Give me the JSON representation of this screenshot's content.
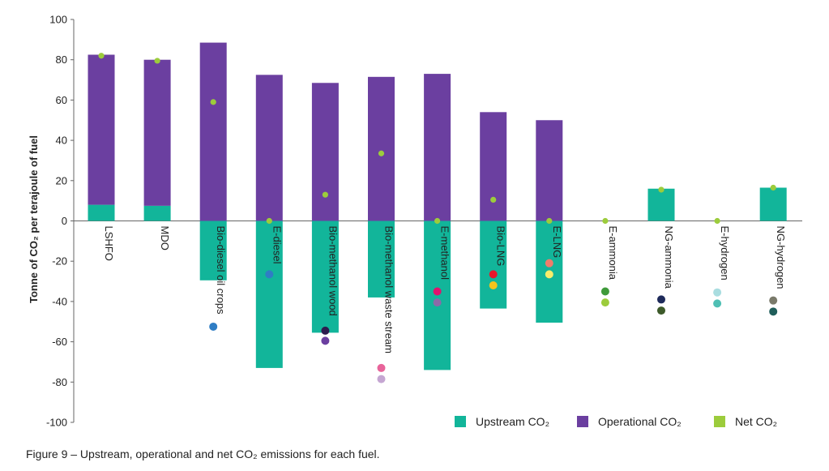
{
  "caption": "Figure 9 – Upstream, operational and net CO₂ emissions for each fuel.",
  "chart_data": {
    "type": "bar",
    "stacked": true,
    "ylabel": "Tonne of CO₂ per terajoule of fuel",
    "ylim": [
      -100,
      100
    ],
    "yticks": [
      100,
      80,
      60,
      40,
      20,
      0,
      -20,
      -40,
      -60,
      -80,
      -100
    ],
    "grid": false,
    "legend_position": "bottom-right",
    "categories": [
      "LSHFO",
      "MDO",
      "Bio-diesel oil crops",
      "E-diesel",
      "Bio-methanol wood",
      "Bio-methanol waste stream",
      "E-methanol",
      "Bio-LNG",
      "E-LNG",
      "E-ammonia",
      "NG-ammonia",
      "E-hydrogen",
      "NG-hydrogen"
    ],
    "category_labels": [
      "LSHFO",
      "MDO",
      "Bio-diesel oil crops",
      "E-diesel",
      "Bio-methanol wood",
      "Bio-methanol waste stream",
      "E-methanol",
      "Bio-LNG",
      "E-LNG",
      "E-ammonia",
      "NG-ammonia",
      "E-hydrogen",
      "NG-hydrogen"
    ],
    "series": [
      {
        "name": "Upstream CO₂",
        "color": "#12b59a",
        "values": [
          8,
          7.5,
          -29.5,
          -73,
          -55.5,
          -38,
          -74,
          -43.5,
          -50.5,
          0,
          16,
          0,
          16.5
        ]
      },
      {
        "name": "Operational CO₂",
        "color": "#6b3fa0",
        "values": [
          74.5,
          72.5,
          88.5,
          72.5,
          68.5,
          71.5,
          73,
          54,
          50,
          0,
          0,
          0,
          0
        ]
      },
      {
        "name": "Net CO₂",
        "type": "scatter",
        "color": "#9ccc3c",
        "values": [
          82,
          79.5,
          59,
          0,
          13,
          33.5,
          0,
          10.5,
          0,
          0,
          15.5,
          0,
          16.5
        ]
      }
    ],
    "markers": [
      {
        "category": "Bio-diesel oil crops",
        "value": -52.5,
        "color": "#2f7dc4"
      },
      {
        "category": "E-diesel",
        "value": -26.5,
        "color": "#2f7dc4"
      },
      {
        "category": "Bio-methanol wood",
        "value": -54.5,
        "color": "#2d1b4e"
      },
      {
        "category": "Bio-methanol wood",
        "value": -59.5,
        "color": "#6b3fa0"
      },
      {
        "category": "Bio-methanol waste stream",
        "value": -73,
        "color": "#e8649a"
      },
      {
        "category": "Bio-methanol waste stream",
        "value": -78.5,
        "color": "#c5a6d2"
      },
      {
        "category": "E-methanol",
        "value": -35,
        "color": "#e0126e"
      },
      {
        "category": "E-methanol",
        "value": -40.5,
        "color": "#8b6aa8"
      },
      {
        "category": "Bio-LNG",
        "value": -26.5,
        "color": "#e8162b"
      },
      {
        "category": "Bio-LNG",
        "value": -32,
        "color": "#f4c41b"
      },
      {
        "category": "E-LNG",
        "value": -21,
        "color": "#f07c6b"
      },
      {
        "category": "E-LNG",
        "value": -26.5,
        "color": "#f7ec6b"
      },
      {
        "category": "E-ammonia",
        "value": -35,
        "color": "#3f9a3a"
      },
      {
        "category": "E-ammonia",
        "value": -40.5,
        "color": "#9ccc3c"
      },
      {
        "category": "NG-ammonia",
        "value": -39,
        "color": "#1e2a5a"
      },
      {
        "category": "NG-ammonia",
        "value": -44.5,
        "color": "#3d5a2a"
      },
      {
        "category": "E-hydrogen",
        "value": -35.5,
        "color": "#a9dde0"
      },
      {
        "category": "E-hydrogen",
        "value": -41,
        "color": "#4fbfb4"
      },
      {
        "category": "NG-hydrogen",
        "value": -39.5,
        "color": "#7a7a6a"
      },
      {
        "category": "NG-hydrogen",
        "value": -45,
        "color": "#1f5e5a"
      }
    ]
  }
}
